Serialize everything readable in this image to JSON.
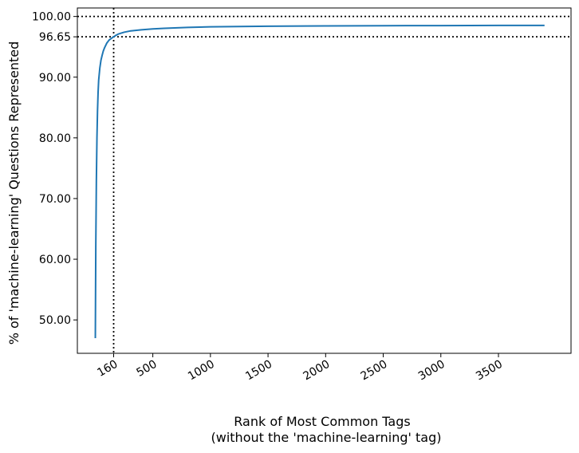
{
  "chart_data": {
    "type": "line",
    "title": "",
    "xlabel_line1": "Rank of Most Common Tags",
    "xlabel_line2": "(without the 'machine-learning' tag)",
    "ylabel": "% of 'machine-learning' Questions Represented",
    "xlim": [
      -155,
      4130
    ],
    "ylim": [
      44.5,
      101.4
    ],
    "x_ticks": [
      160,
      500,
      1000,
      1500,
      2000,
      2500,
      3000,
      3500
    ],
    "x_tick_labels": [
      "160",
      "500",
      "1000",
      "1500",
      "2000",
      "2500",
      "3000",
      "3500"
    ],
    "y_ticks": [
      50,
      60,
      70,
      80,
      90,
      96.65,
      100
    ],
    "y_tick_labels": [
      "50.00",
      "60.00",
      "70.00",
      "80.00",
      "90.00",
      "96.65",
      "100.00"
    ],
    "reference_lines": {
      "x": 160,
      "y": [
        96.65,
        100
      ]
    },
    "color": "#1f77b4",
    "series": [
      {
        "x": [
          1,
          5,
          10,
          15,
          20,
          25,
          30,
          40,
          50,
          60,
          70,
          80,
          90,
          100,
          120,
          140,
          160,
          180,
          200,
          250,
          300,
          350,
          400,
          500,
          600,
          800,
          1000,
          1500,
          2000,
          2500,
          3000,
          3500,
          3900
        ],
        "values": [
          47.0,
          62.0,
          73.0,
          80.0,
          84.5,
          87.5,
          89.5,
          91.5,
          92.8,
          93.6,
          94.3,
          94.8,
          95.2,
          95.6,
          96.1,
          96.4,
          96.65,
          96.9,
          97.1,
          97.4,
          97.6,
          97.7,
          97.8,
          97.95,
          98.05,
          98.2,
          98.3,
          98.4,
          98.45,
          98.48,
          98.5,
          98.52,
          98.53
        ]
      }
    ]
  }
}
